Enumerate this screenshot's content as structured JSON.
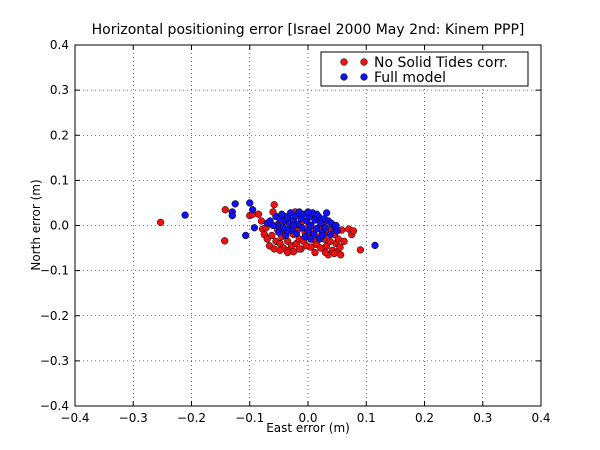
{
  "chart_data": {
    "type": "scatter",
    "title": "Horizontal positioning error [Israel 2000 May 2nd: Kinem PPP]",
    "xlabel": "East error (m)",
    "ylabel": "North error (m)",
    "xlim": [
      -0.4,
      0.4
    ],
    "ylim": [
      -0.4,
      0.4
    ],
    "xticks": [
      -0.4,
      -0.3,
      -0.2,
      -0.1,
      0.0,
      0.1,
      0.2,
      0.3,
      0.4
    ],
    "yticks": [
      -0.4,
      -0.3,
      -0.2,
      -0.1,
      0.0,
      0.1,
      0.2,
      0.3,
      0.4
    ],
    "xtick_labels": [
      "−0.4",
      "−0.3",
      "−0.2",
      "−0.1",
      "0.0",
      "0.1",
      "0.2",
      "0.3",
      "0.4"
    ],
    "ytick_labels": [
      "−0.4",
      "−0.3",
      "−0.2",
      "−0.1",
      "0.0",
      "0.1",
      "0.2",
      "0.3",
      "0.4"
    ],
    "grid": true,
    "legend_position": "top-right",
    "series": [
      {
        "name": "No Solid Tides corr.",
        "color": "#ee1111",
        "points": [
          [
            -0.253,
            0.007
          ],
          [
            -0.143,
            -0.034
          ],
          [
            -0.142,
            0.035
          ],
          [
            -0.1,
            0.022
          ],
          [
            -0.095,
            0.025
          ],
          [
            -0.085,
            0.025
          ],
          [
            -0.08,
            0.01
          ],
          [
            -0.078,
            -0.008
          ],
          [
            -0.075,
            -0.02
          ],
          [
            -0.072,
            -0.005
          ],
          [
            -0.07,
            -0.03
          ],
          [
            -0.066,
            -0.045
          ],
          [
            -0.062,
            -0.022
          ],
          [
            -0.06,
            0.03
          ],
          [
            -0.058,
            0.046
          ],
          [
            -0.058,
            -0.052
          ],
          [
            -0.055,
            -0.035
          ],
          [
            -0.052,
            -0.01
          ],
          [
            -0.05,
            0.005
          ],
          [
            -0.048,
            -0.04
          ],
          [
            -0.045,
            -0.025
          ],
          [
            -0.042,
            -0.05
          ],
          [
            -0.04,
            0.02
          ],
          [
            -0.038,
            -0.015
          ],
          [
            -0.035,
            -0.035
          ],
          [
            -0.033,
            -0.055
          ],
          [
            -0.03,
            0.0
          ],
          [
            -0.028,
            -0.045
          ],
          [
            -0.025,
            -0.02
          ],
          [
            -0.022,
            0.03
          ],
          [
            -0.02,
            -0.04
          ],
          [
            -0.018,
            -0.01
          ],
          [
            -0.015,
            -0.03
          ],
          [
            -0.012,
            -0.052
          ],
          [
            -0.01,
            0.01
          ],
          [
            -0.008,
            -0.035
          ],
          [
            -0.005,
            -0.015
          ],
          [
            -0.002,
            -0.045
          ],
          [
            0.0,
            -0.025
          ],
          [
            0.002,
            0.0
          ],
          [
            0.005,
            -0.048
          ],
          [
            0.008,
            -0.012
          ],
          [
            0.01,
            -0.032
          ],
          [
            0.012,
            0.015
          ],
          [
            0.015,
            -0.042
          ],
          [
            0.018,
            -0.005
          ],
          [
            0.02,
            -0.025
          ],
          [
            0.022,
            -0.05
          ],
          [
            0.025,
            0.005
          ],
          [
            0.028,
            -0.03
          ],
          [
            0.03,
            -0.015
          ],
          [
            0.032,
            -0.045
          ],
          [
            0.035,
            -0.065
          ],
          [
            0.038,
            -0.035
          ],
          [
            0.04,
            -0.008
          ],
          [
            0.042,
            -0.055
          ],
          [
            0.045,
            -0.02
          ],
          [
            0.048,
            -0.04
          ],
          [
            0.05,
            -0.058
          ],
          [
            0.052,
            -0.03
          ],
          [
            0.055,
            -0.048
          ],
          [
            0.056,
            -0.065
          ],
          [
            0.058,
            -0.01
          ],
          [
            0.062,
            -0.035
          ],
          [
            0.07,
            -0.008
          ],
          [
            0.075,
            -0.02
          ],
          [
            0.078,
            -0.012
          ],
          [
            0.09,
            -0.054
          ],
          [
            -0.035,
            -0.06
          ],
          [
            -0.025,
            -0.058
          ],
          [
            -0.048,
            -0.055
          ],
          [
            0.012,
            -0.06
          ],
          [
            0.03,
            -0.06
          ],
          [
            -0.015,
            -0.052
          ],
          [
            0.045,
            -0.062
          ]
        ]
      },
      {
        "name": "Full model",
        "color": "#1111ee",
        "points": [
          [
            -0.211,
            0.023
          ],
          [
            -0.13,
            0.03
          ],
          [
            -0.125,
            0.048
          ],
          [
            -0.13,
            0.022
          ],
          [
            -0.107,
            -0.022
          ],
          [
            -0.1,
            0.05
          ],
          [
            -0.095,
            0.035
          ],
          [
            -0.092,
            -0.005
          ],
          [
            -0.07,
            0.005
          ],
          [
            -0.065,
            0.01
          ],
          [
            -0.055,
            0.02
          ],
          [
            -0.052,
            0.0
          ],
          [
            -0.05,
            -0.015
          ],
          [
            -0.048,
            0.015
          ],
          [
            -0.045,
            0.025
          ],
          [
            -0.042,
            -0.005
          ],
          [
            -0.04,
            0.01
          ],
          [
            -0.038,
            -0.022
          ],
          [
            -0.035,
            0.018
          ],
          [
            -0.032,
            0.005
          ],
          [
            -0.03,
            0.028
          ],
          [
            -0.028,
            -0.01
          ],
          [
            -0.025,
            0.012
          ],
          [
            -0.022,
            0.022
          ],
          [
            -0.02,
            -0.018
          ],
          [
            -0.018,
            0.002
          ],
          [
            -0.015,
            0.03
          ],
          [
            -0.012,
            0.015
          ],
          [
            -0.01,
            -0.005
          ],
          [
            -0.008,
            0.025
          ],
          [
            -0.005,
            -0.025
          ],
          [
            -0.002,
            0.01
          ],
          [
            0.0,
            -0.012
          ],
          [
            0.002,
            0.02
          ],
          [
            0.005,
            0.0
          ],
          [
            0.008,
            0.028
          ],
          [
            0.01,
            -0.02
          ],
          [
            0.012,
            0.012
          ],
          [
            0.015,
            -0.008
          ],
          [
            0.018,
            0.02
          ],
          [
            0.02,
            -0.03
          ],
          [
            0.022,
            0.005
          ],
          [
            0.025,
            -0.015
          ],
          [
            0.028,
            0.015
          ],
          [
            0.03,
            -0.005
          ],
          [
            0.032,
            0.028
          ],
          [
            0.035,
            0.01
          ],
          [
            0.038,
            -0.02
          ],
          [
            0.04,
            0.005
          ],
          [
            0.045,
            -0.005
          ],
          [
            0.048,
            0.0
          ],
          [
            0.05,
            -0.012
          ],
          [
            0.115,
            -0.044
          ],
          [
            -0.025,
            0.0
          ],
          [
            0.005,
            -0.03
          ],
          [
            -0.06,
            0.0
          ],
          [
            0.0,
            0.03
          ],
          [
            0.015,
            0.025
          ],
          [
            -0.035,
            -0.012
          ],
          [
            0.025,
            -0.022
          ]
        ]
      }
    ]
  }
}
